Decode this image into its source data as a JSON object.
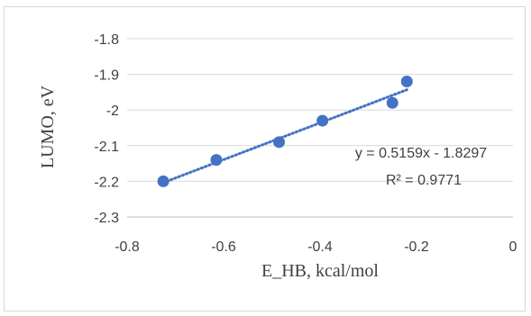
{
  "chart_data": {
    "type": "scatter",
    "title": "",
    "xlabel": "E_HB, kcal/mol",
    "ylabel": "LUMO, eV",
    "xlim": [
      -0.8,
      0
    ],
    "ylim": [
      -2.3,
      -1.8
    ],
    "x_ticks": [
      -0.8,
      -0.6,
      -0.4,
      -0.2,
      0
    ],
    "y_ticks": [
      -1.8,
      -1.9,
      -2,
      -2.1,
      -2.2,
      -2.3
    ],
    "x_tick_labels": [
      "-0.8",
      "-0.6",
      "-0.4",
      "-0.2",
      "0"
    ],
    "y_tick_labels": [
      "-1.8",
      "-1.9",
      "-2",
      "-2.1",
      "-2.2",
      "-2.3"
    ],
    "grid": "horizontal",
    "legend": "none",
    "series": [
      {
        "x": [
          -0.725,
          -0.615,
          -0.485,
          -0.395,
          -0.25,
          -0.22
        ],
        "y": [
          -2.2,
          -2.14,
          -2.09,
          -2.03,
          -1.98,
          -1.92
        ],
        "color": "#4472c4"
      }
    ],
    "trendline": {
      "type": "linear",
      "slope": 0.5159,
      "intercept": -1.8297,
      "x_range": [
        -0.725,
        -0.22
      ],
      "style": "dotted",
      "color": "#4472c4",
      "equation": "y = 0.5159x - 1.8297",
      "r_squared": "R² = 0.9771"
    }
  }
}
